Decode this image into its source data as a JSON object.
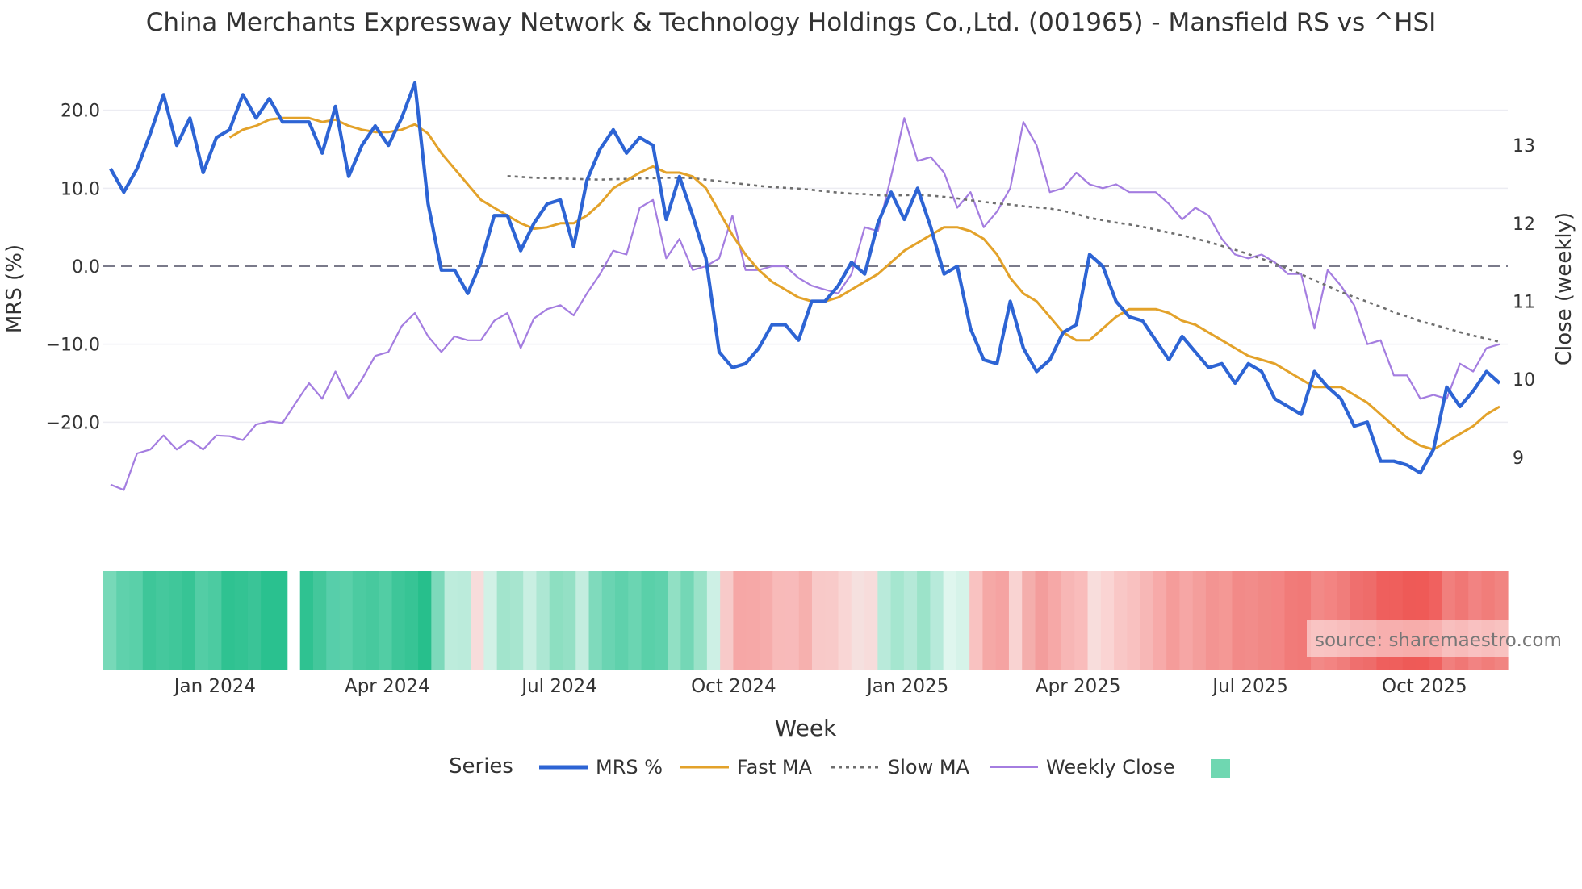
{
  "chart_data": {
    "type": "line",
    "title": "China Merchants Expressway Network & Technology Holdings Co.,Ltd. (001965) - Mansfield RS vs ^HSI",
    "xlabel": "Week",
    "ylabel": "MRS (%)",
    "y2label": "Close (weekly)",
    "ylim": [
      -30,
      24
    ],
    "y_ticks": [
      20,
      10,
      0,
      -10,
      -20
    ],
    "y_tick_labels": [
      "20.0",
      "10.0",
      "0.0",
      "−10.0",
      "−20.0"
    ],
    "y2lim": [
      8.45,
      13.85
    ],
    "y2_ticks": [
      13,
      12,
      11,
      10,
      9
    ],
    "y2_tick_labels": [
      "13",
      "12",
      "11",
      "10",
      "9"
    ],
    "x_start": "2023-11-03",
    "x_end": "2025-11-14",
    "x_ticks": [
      "2024-01-01",
      "2024-04-01",
      "2024-07-01",
      "2024-10-01",
      "2025-01-01",
      "2025-04-01",
      "2025-07-01",
      "2025-10-01"
    ],
    "x_tick_labels": [
      "Jan 2024",
      "Apr 2024",
      "Jul 2024",
      "Oct 2024",
      "Jan 2025",
      "Apr 2025",
      "Jul 2025",
      "Oct 2025"
    ],
    "zero_line": 0,
    "mrs": [
      12.5,
      9.5,
      12.5,
      17,
      22,
      15.5,
      19,
      12,
      16.5,
      17.5,
      22,
      19,
      21.5,
      18.5,
      18.5,
      18.5,
      14.5,
      20.5,
      11.5,
      15.5,
      18,
      15.5,
      19,
      23.5,
      8,
      -0.5,
      -0.5,
      -3.5,
      0.5,
      6.5,
      6.5,
      2,
      5.5,
      8,
      8.5,
      2.5,
      11,
      15,
      17.5,
      14.5,
      16.5,
      15.5,
      6,
      11.5,
      6.5,
      1,
      -11,
      -13,
      -12.5,
      -10.5,
      -7.5,
      -7.5,
      -9.5,
      -4.5,
      -4.5,
      -2.5,
      0.5,
      -1,
      5.5,
      9.5,
      6,
      10,
      5,
      -1,
      0,
      -8,
      -12,
      -12.5,
      -4.5,
      -10.5,
      -13.5,
      -12,
      -8.5,
      -7.5,
      1.5,
      0,
      -4.5,
      -6.5,
      -7,
      -9.5,
      -12,
      -9,
      -11,
      -13,
      -12.5,
      -15,
      -12.5,
      -13.5,
      -17,
      -18,
      -19,
      -13.5,
      -15.5,
      -17,
      -20.5,
      -20,
      -25,
      -25,
      -25.5,
      -26.5,
      -23.5,
      -15.5,
      -18,
      -16,
      -13.5,
      -15
    ],
    "fast_ma": [
      null,
      null,
      null,
      null,
      null,
      null,
      null,
      null,
      null,
      16.5,
      17.5,
      18,
      18.8,
      19,
      19,
      19,
      18.5,
      18.8,
      18,
      17.5,
      17.2,
      17.2,
      17.5,
      18.2,
      17,
      14.5,
      12.5,
      10.5,
      8.5,
      7.5,
      6.5,
      5.5,
      4.8,
      5,
      5.5,
      5.5,
      6.5,
      8,
      10,
      11,
      12,
      12.8,
      12,
      12,
      11.5,
      10,
      7,
      4,
      1.5,
      -0.5,
      -2,
      -3,
      -4,
      -4.5,
      -4.5,
      -4,
      -3,
      -2,
      -1,
      0.5,
      2,
      3,
      4,
      5,
      5,
      4.5,
      3.5,
      1.5,
      -1.5,
      -3.5,
      -4.5,
      -6.5,
      -8.5,
      -9.5,
      -9.5,
      -8,
      -6.5,
      -5.5,
      -5.5,
      -5.5,
      -6,
      -7,
      -7.5,
      -8.5,
      -9.5,
      -10.5,
      -11.5,
      -12,
      -12.5,
      -13.5,
      -14.5,
      -15.5,
      -15.5,
      -15.5,
      -16.5,
      -17.5,
      -19,
      -20.5,
      -22,
      -23,
      -23.5,
      -22.5,
      -21.5,
      -20.5,
      -19,
      -18
    ]
  },
  "heatmap": {
    "row": "MRS",
    "gap_after_index": 13,
    "colors": [
      "#77d9b8",
      "#5fd1ac",
      "#5ad0a9",
      "#3ec699",
      "#45c89d",
      "#40c79a",
      "#37c495",
      "#53cda5",
      "#4ccba1",
      "#2fc291",
      "#33c393",
      "#3ac497",
      "#2ac18f",
      "#2ac18f",
      "#2fc291",
      "#43c79b",
      "#57ceaa",
      "#5ad0a9",
      "#4ccba1",
      "#47c99e",
      "#52cda4",
      "#3ec699",
      "#37c495",
      "#27bf8c",
      "#7dd9bb",
      "#bdecdc",
      "#bbebdb",
      "#f7dcdb",
      "#d1f1e6",
      "#a2e4cc",
      "#a7e5cf",
      "#c9efe2",
      "#ade7d3",
      "#8ddfc1",
      "#94e0c5",
      "#c3eddf",
      "#7fdabc",
      "#6ad4b2",
      "#5fd1ac",
      "#6bd5b2",
      "#5ad0a9",
      "#5fd1ac",
      "#91e0c4",
      "#74d7b6",
      "#9ae2c8",
      "#cdf0e5",
      "#f7cac9",
      "#f6a7a6",
      "#f6a8a7",
      "#f6acab",
      "#f8bab9",
      "#f8baba",
      "#f6b0ae",
      "#f8c9c8",
      "#f8cac9",
      "#f9d6d5",
      "#f5e0df",
      "#f7dcdb",
      "#b9eada",
      "#a5e6cf",
      "#b5e9d8",
      "#9ce3c9",
      "#b7eada",
      "#dff6ee",
      "#d6f3e9",
      "#f9c2c1",
      "#f5a8a6",
      "#f5a3a2",
      "#f9d3d2",
      "#f4aeac",
      "#f39d9c",
      "#f6a8a7",
      "#f7b6b5",
      "#f9bcbb",
      "#f8dddc",
      "#fad4d3",
      "#f9c7c6",
      "#f9c1c0",
      "#f7b7b6",
      "#f7aaa9",
      "#f59c9a",
      "#f6a6a5",
      "#f49e9c",
      "#f39492",
      "#f49895",
      "#f28a88",
      "#f28c8a",
      "#f18885",
      "#f38584",
      "#f17b79",
      "#f17977",
      "#f28987",
      "#f38482",
      "#f07d7b",
      "#ef6f6e",
      "#ee6c6a",
      "#ef5f5d",
      "#ef5f5c",
      "#ee5a57",
      "#ef5a57",
      "#f0615f",
      "#f17f7d",
      "#f07775",
      "#f28382",
      "#f17d7a",
      "#f18481"
    ]
  },
  "legend": {
    "title": "Series",
    "items": [
      {
        "label": "MRS %",
        "color": "#2d64d4",
        "style": "solid-thick"
      },
      {
        "label": "Fast MA",
        "color": "#e3a22a",
        "style": "solid"
      },
      {
        "label": "Slow MA",
        "color": "#6e6e6e",
        "style": "dotted"
      },
      {
        "label": "Weekly Close",
        "color": "#a47de0",
        "style": "solid-thin"
      }
    ],
    "swatch_color": "#6fd7b1"
  },
  "watermark": "source: sharemaestro.com",
  "colors": {
    "mrs": "#2d64d4",
    "fast_ma": "#e3a22a",
    "slow_ma": "#6e6e6e",
    "close": "#a47de0",
    "zero_line": "#7a7a8a",
    "grid": "#ececf2",
    "text": "#333333"
  }
}
